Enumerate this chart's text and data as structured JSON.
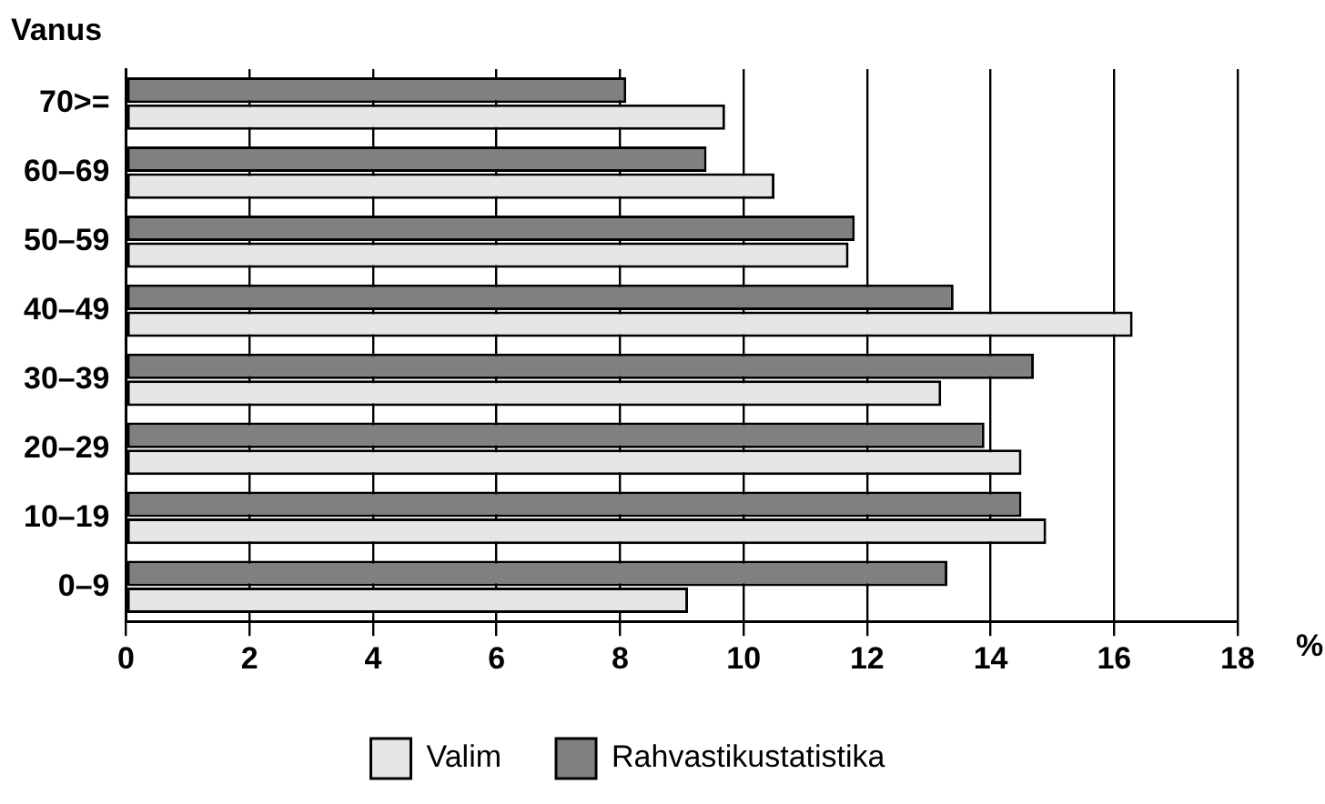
{
  "chart_data": {
    "type": "bar",
    "orientation": "horizontal",
    "ylabel": "Vanus",
    "xlabel": "%",
    "categories": [
      "70>=",
      "60–69",
      "50–59",
      "40–49",
      "30–39",
      "20–29",
      "10–19",
      "0–9"
    ],
    "series": [
      {
        "name": "Rahvastikustatistika",
        "color": "#808080",
        "values": [
          8.1,
          9.4,
          11.8,
          13.4,
          14.7,
          13.9,
          14.5,
          13.3
        ]
      },
      {
        "name": "Valim",
        "color": "#e6e6e6",
        "values": [
          9.7,
          10.5,
          11.7,
          16.3,
          13.2,
          14.5,
          14.9,
          9.1
        ]
      }
    ],
    "xlim": [
      0,
      18
    ],
    "xticks": [
      0,
      2,
      4,
      6,
      8,
      10,
      12,
      14,
      16,
      18
    ],
    "grid": "x",
    "legend": "bottom"
  }
}
